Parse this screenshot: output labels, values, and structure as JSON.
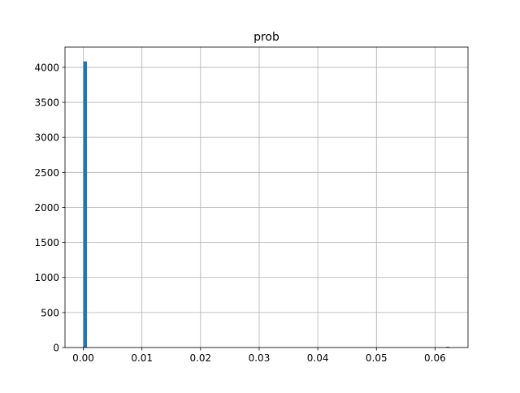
{
  "chart_data": {
    "type": "bar",
    "title": "prob",
    "xlabel": "",
    "ylabel": "",
    "bins": [
      {
        "x0": 0.0,
        "x1": 0.000625,
        "count": 4085
      },
      {
        "x0": 0.061875,
        "x1": 0.0625,
        "count": 11
      }
    ],
    "xlim": [
      -0.003125,
      0.065625
    ],
    "ylim": [
      0,
      4289
    ],
    "xticks": [
      0.0,
      0.01,
      0.02,
      0.03,
      0.04,
      0.05,
      0.06
    ],
    "xtick_labels": [
      "0.00",
      "0.01",
      "0.02",
      "0.03",
      "0.04",
      "0.05",
      "0.06"
    ],
    "yticks": [
      0,
      500,
      1000,
      1500,
      2000,
      2500,
      3000,
      3500,
      4000
    ],
    "ytick_labels": [
      "0",
      "500",
      "1000",
      "1500",
      "2000",
      "2500",
      "3000",
      "3500",
      "4000"
    ],
    "grid": true,
    "colors": {
      "bar": "#1f77b4",
      "grid": "#b0b0b0",
      "axis": "#000000"
    }
  }
}
